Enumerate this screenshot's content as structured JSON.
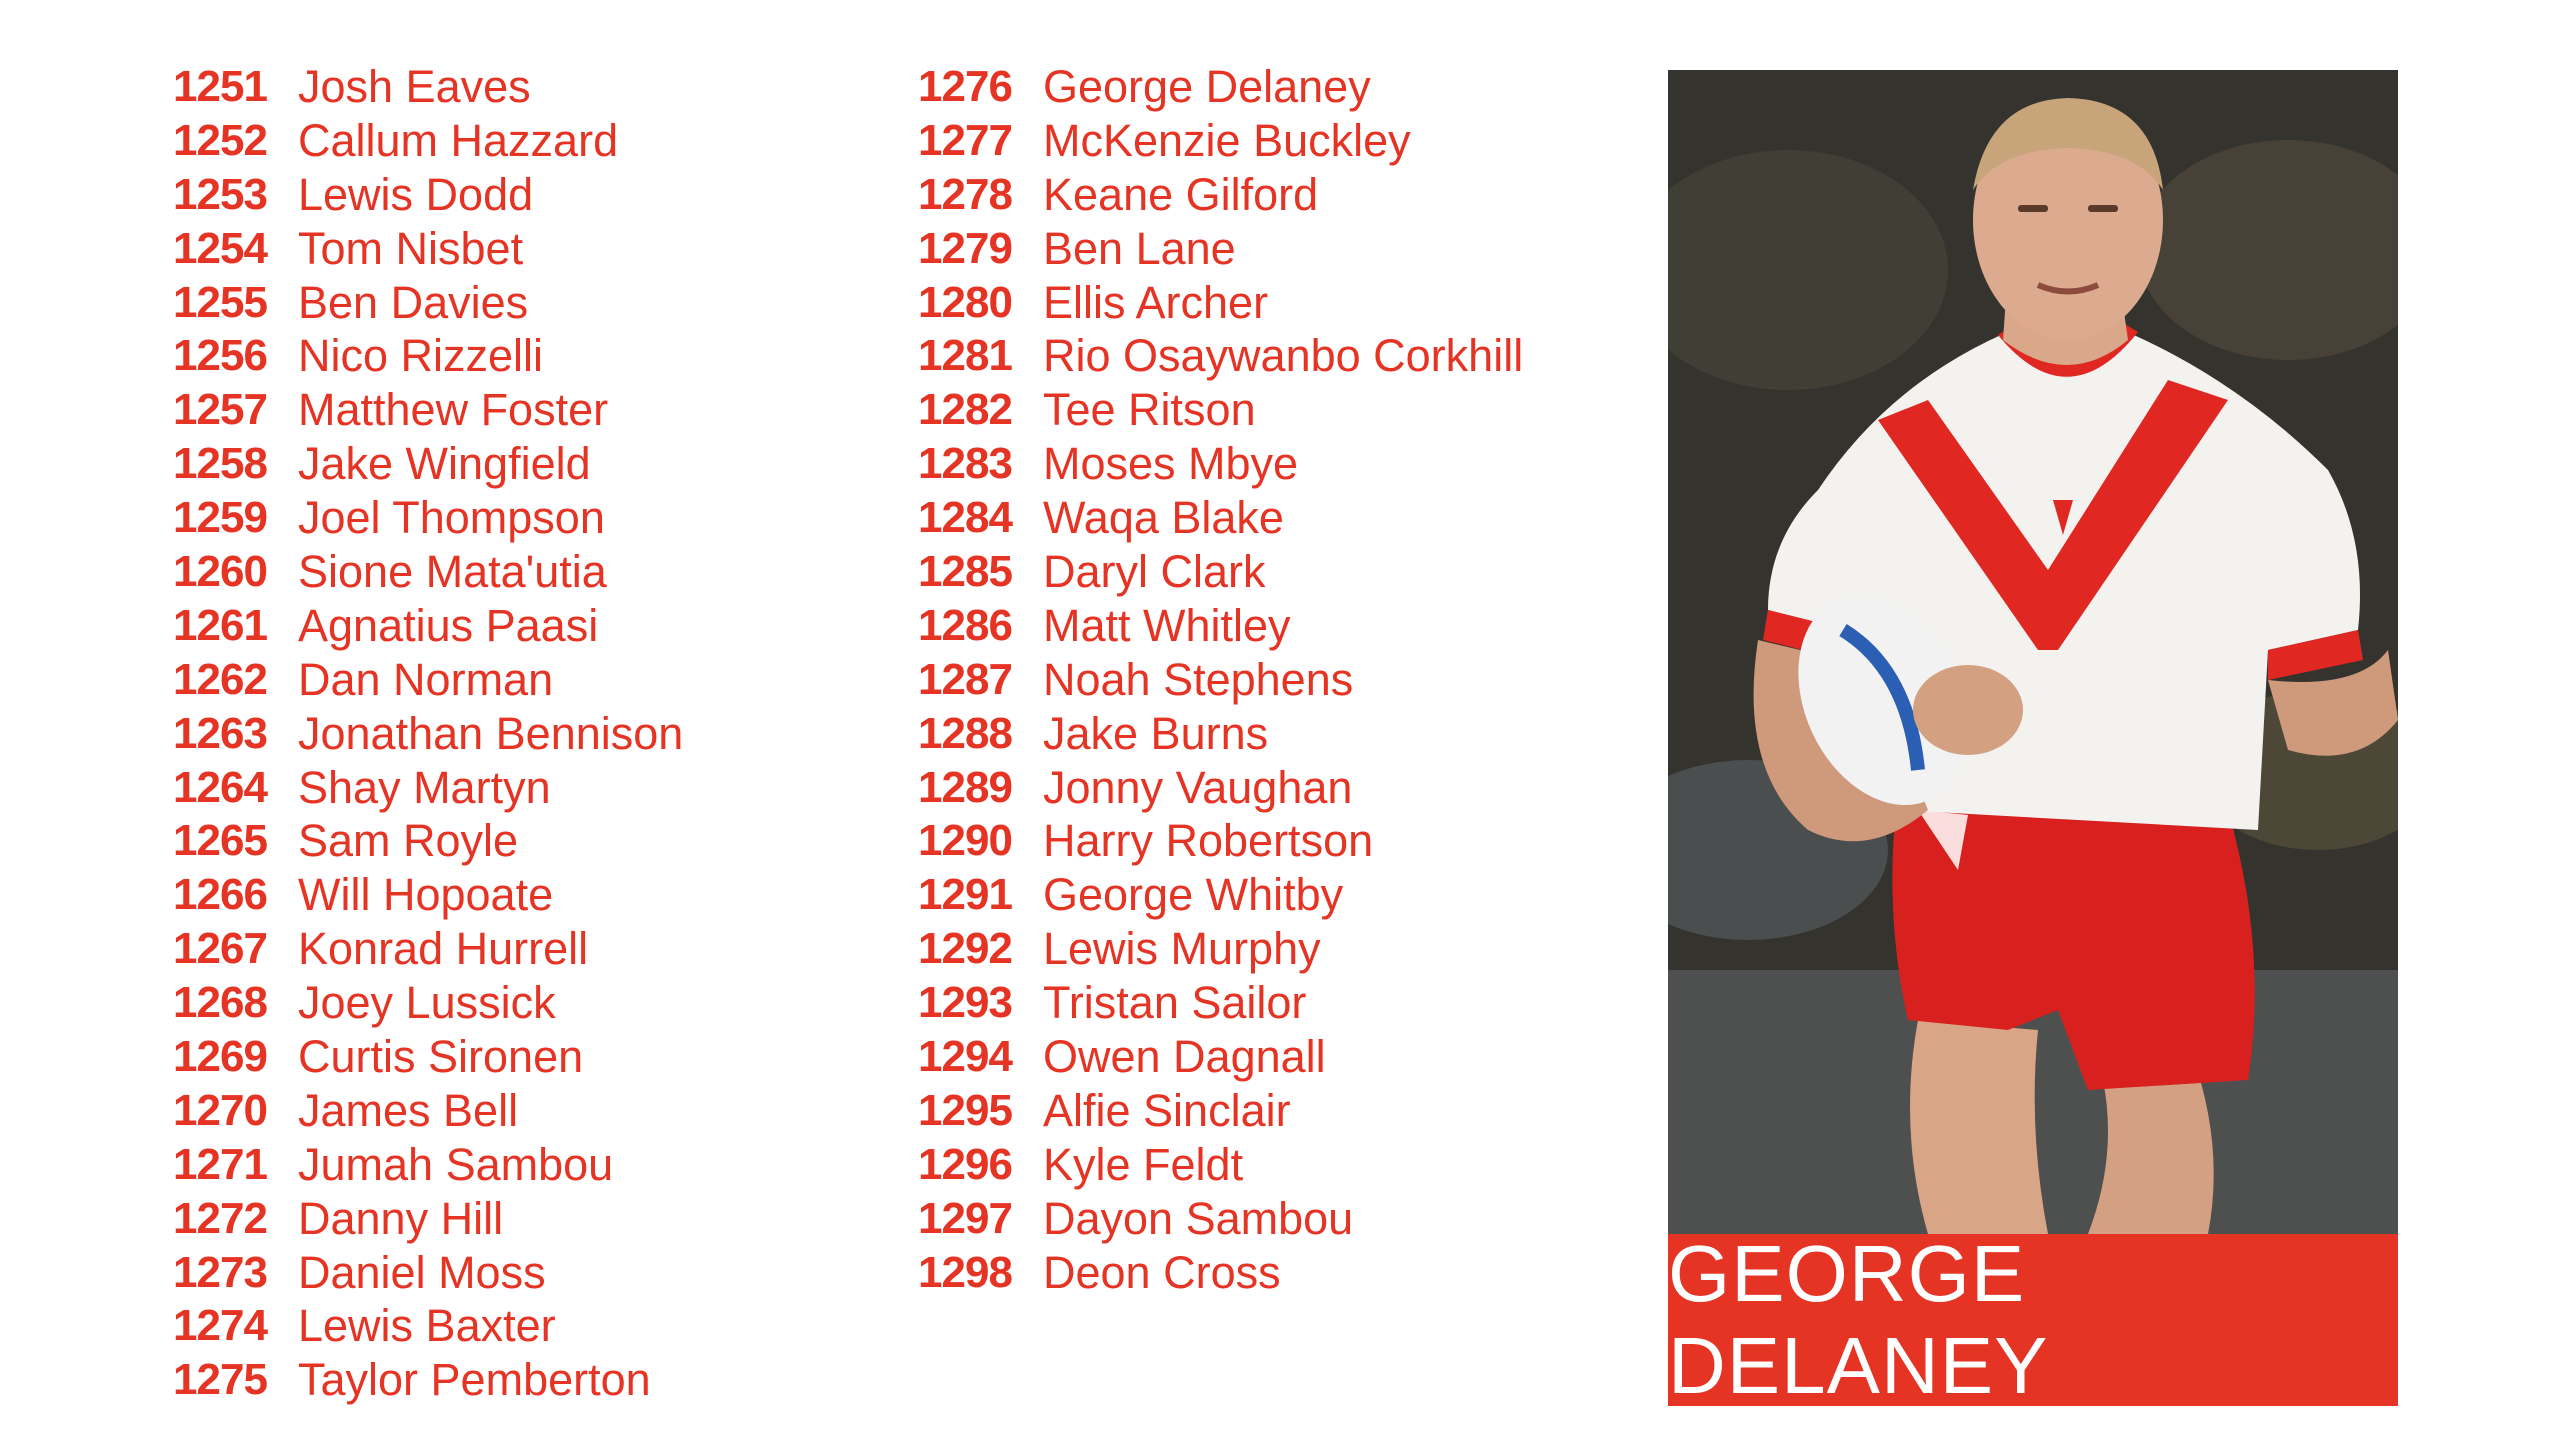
{
  "colors": {
    "accent": "#e53324",
    "caption_text": "#ffffff"
  },
  "players_left": [
    {
      "number": "1251",
      "name": "Josh Eaves"
    },
    {
      "number": "1252",
      "name": "Callum Hazzard"
    },
    {
      "number": "1253",
      "name": "Lewis  Dodd"
    },
    {
      "number": "1254",
      "name": "Tom  Nisbet"
    },
    {
      "number": "1255",
      "name": "Ben Davies"
    },
    {
      "number": "1256",
      "name": "Nico Rizzelli"
    },
    {
      "number": "1257",
      "name": "Matthew Foster"
    },
    {
      "number": "1258",
      "name": "Jake Wingfield"
    },
    {
      "number": "1259",
      "name": "Joel  Thompson"
    },
    {
      "number": "1260",
      "name": "Sione Mata'utia"
    },
    {
      "number": "1261",
      "name": "Agnatius Paasi"
    },
    {
      "number": "1262",
      "name": "Dan Norman"
    },
    {
      "number": "1263",
      "name": "Jonathan Bennison"
    },
    {
      "number": "1264",
      "name": "Shay Martyn"
    },
    {
      "number": "1265",
      "name": "Sam Royle"
    },
    {
      "number": "1266",
      "name": "Will Hopoate"
    },
    {
      "number": "1267",
      "name": "Konrad Hurrell"
    },
    {
      "number": "1268",
      "name": "Joey Lussick"
    },
    {
      "number": "1269",
      "name": "Curtis Sironen"
    },
    {
      "number": "1270",
      "name": "James Bell"
    },
    {
      "number": "1271",
      "name": "Jumah Sambou"
    },
    {
      "number": "1272",
      "name": "Danny Hill"
    },
    {
      "number": "1273",
      "name": "Daniel Moss"
    },
    {
      "number": "1274",
      "name": "Lewis Baxter"
    },
    {
      "number": "1275",
      "name": "Taylor Pemberton"
    }
  ],
  "players_right": [
    {
      "number": "1276",
      "name": "George Delaney"
    },
    {
      "number": "1277",
      "name": "McKenzie Buckley"
    },
    {
      "number": "1278",
      "name": "Keane Gilford"
    },
    {
      "number": "1279",
      "name": "Ben Lane"
    },
    {
      "number": "1280",
      "name": "Ellis Archer"
    },
    {
      "number": "1281",
      "name": "Rio Osaywanbo Corkhill"
    },
    {
      "number": "1282",
      "name": "Tee Ritson"
    },
    {
      "number": "1283",
      "name": "Moses Mbye"
    },
    {
      "number": "1284",
      "name": "Waqa Blake"
    },
    {
      "number": "1285",
      "name": "Daryl Clark"
    },
    {
      "number": "1286",
      "name": "Matt Whitley"
    },
    {
      "number": "1287",
      "name": "Noah Stephens"
    },
    {
      "number": "1288",
      "name": "Jake Burns"
    },
    {
      "number": "1289",
      "name": "Jonny Vaughan"
    },
    {
      "number": "1290",
      "name": "Harry Robertson"
    },
    {
      "number": "1291",
      "name": "George Whitby"
    },
    {
      "number": "1292",
      "name": "Lewis Murphy"
    },
    {
      "number": "1293",
      "name": "Tristan Sailor"
    },
    {
      "number": "1294",
      "name": "Owen Dagnall"
    },
    {
      "number": "1295",
      "name": "Alfie Sinclair"
    },
    {
      "number": "1296",
      "name": "Kyle Feldt"
    },
    {
      "number": "1297",
      "name": "Dayon Sambou"
    },
    {
      "number": "1298",
      "name": "Deon Cross"
    }
  ],
  "feature": {
    "photo_icon": "rugby-player-photo",
    "caption": "GEORGE DELANEY"
  }
}
